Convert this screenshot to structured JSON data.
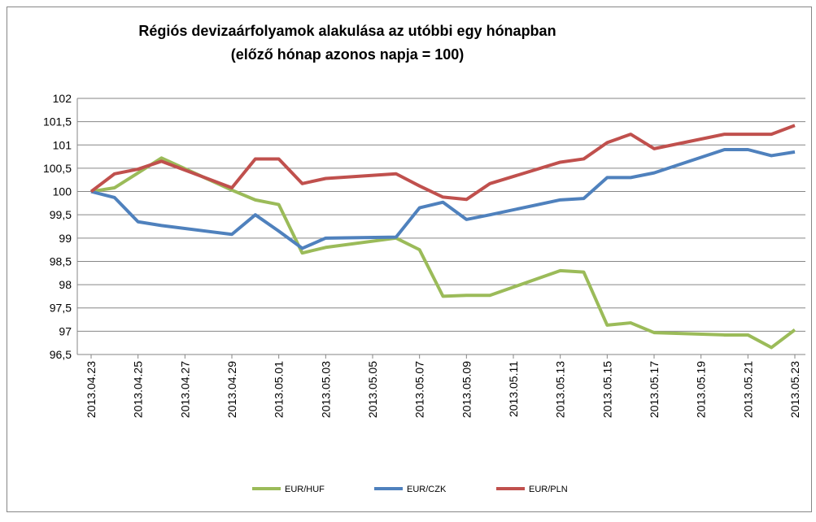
{
  "chart_data": {
    "type": "line",
    "title": "Régiós devizaárfolyamok alakulása az utóbbi egy hónapban",
    "subtitle": "(előző hónap azonos napja = 100)",
    "x": [
      "2013.04.23",
      "2013.04.24",
      "2013.04.25",
      "2013.04.26",
      "2013.04.29",
      "2013.04.30",
      "2013.05.01",
      "2013.05.02",
      "2013.05.03",
      "2013.05.06",
      "2013.05.07",
      "2013.05.08",
      "2013.05.09",
      "2013.05.10",
      "2013.05.13",
      "2013.05.14",
      "2013.05.15",
      "2013.05.16",
      "2013.05.17",
      "2013.05.20",
      "2013.05.21",
      "2013.05.22",
      "2013.05.23"
    ],
    "series": [
      {
        "name": "EUR/HUF",
        "color": "#9bbb59",
        "values": [
          100,
          100.08,
          100.4,
          100.72,
          100.03,
          99.82,
          99.72,
          98.68,
          98.8,
          99.0,
          98.75,
          97.75,
          97.77,
          97.77,
          98.3,
          98.27,
          97.13,
          97.18,
          96.97,
          96.92,
          96.92,
          96.65,
          97.03
        ]
      },
      {
        "name": "EUR/CZK",
        "color": "#4f81bd",
        "values": [
          100,
          99.87,
          99.35,
          99.27,
          99.08,
          99.5,
          99.15,
          98.78,
          99.0,
          99.02,
          99.65,
          99.77,
          99.4,
          99.5,
          99.82,
          99.85,
          100.3,
          100.3,
          100.4,
          100.9,
          100.9,
          100.77,
          100.85
        ]
      },
      {
        "name": "EUR/PLN",
        "color": "#c0504d",
        "values": [
          100,
          100.38,
          100.48,
          100.65,
          100.08,
          100.7,
          100.7,
          100.17,
          100.28,
          100.38,
          100.12,
          99.88,
          99.83,
          100.17,
          100.63,
          100.7,
          101.05,
          101.23,
          100.92,
          101.23,
          101.23,
          101.23,
          101.42
        ]
      }
    ],
    "xlim": [
      "2013.04.23",
      "2013.05.23"
    ],
    "xticks": [
      "2013.04.23",
      "2013.04.25",
      "2013.04.27",
      "2013.04.29",
      "2013.05.01",
      "2013.05.03",
      "2013.05.05",
      "2013.05.07",
      "2013.05.09",
      "2013.05.11",
      "2013.05.13",
      "2013.05.15",
      "2013.05.17",
      "2013.05.19",
      "2013.05.21",
      "2013.05.23"
    ],
    "ylim": [
      96.5,
      102
    ],
    "yticks": [
      {
        "value": 96.5,
        "label": "96,5"
      },
      97,
      {
        "value": 97.5,
        "label": "97,5"
      },
      98,
      {
        "value": 98.5,
        "label": "98,5"
      },
      99,
      {
        "value": 99.5,
        "label": "99,5"
      },
      100,
      {
        "value": 100.5,
        "label": "100,5"
      },
      101,
      {
        "value": 101.5,
        "label": "101,5"
      },
      102
    ],
    "grid": true,
    "legend": "bottom"
  }
}
